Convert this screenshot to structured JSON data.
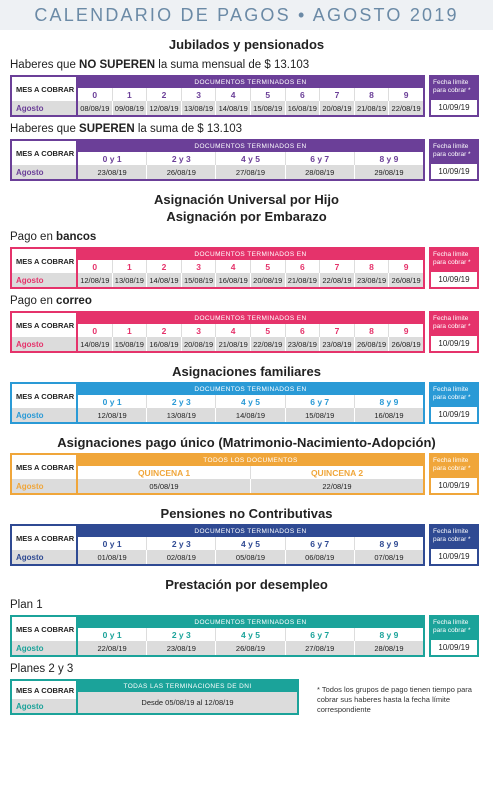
{
  "header": {
    "title": "CALENDARIO DE PAGOS • AGOSTO 2019"
  },
  "sections": [
    {
      "titles": [
        "Jubilados y pensionados"
      ],
      "tables": [
        {
          "color": "#6b3f98",
          "caption": {
            "before": "Haberes que ",
            "bold": "NO SUPEREN",
            "after": " la suma mensual de $ 13.103"
          },
          "row_header": "MES A COBRAR",
          "columns_header": "DOCUMENTOS TERMINADOS EN",
          "columns": [
            "0",
            "1",
            "2",
            "3",
            "4",
            "5",
            "6",
            "7",
            "8",
            "9"
          ],
          "month": "Agosto",
          "dates": [
            "08/08/19",
            "09/08/19",
            "12/08/19",
            "13/08/19",
            "14/08/19",
            "15/08/19",
            "16/08/19",
            "20/08/19",
            "21/08/19",
            "22/08/19"
          ],
          "limit_header": "Fecha límite para cobrar *",
          "limit_date": "10/09/19"
        },
        {
          "color": "#6b3f98",
          "caption": {
            "before": "Haberes que ",
            "bold": "SUPEREN",
            "after": " la suma de $ 13.103"
          },
          "row_header": "MES A COBRAR",
          "columns_header": "DOCUMENTOS TERMINADOS EN",
          "columns": [
            "0 y 1",
            "2 y 3",
            "4 y 5",
            "6 y 7",
            "8 y 9"
          ],
          "month": "Agosto",
          "dates": [
            "23/08/19",
            "26/08/19",
            "27/08/19",
            "28/08/19",
            "29/08/19"
          ],
          "limit_header": "Fecha límite para cobrar *",
          "limit_date": "10/09/19"
        }
      ]
    },
    {
      "titles": [
        "Asignación Universal por Hijo",
        "Asignación por Embarazo"
      ],
      "tables": [
        {
          "color": "#e5336b",
          "caption": {
            "before": "Pago en ",
            "bold": "bancos"
          },
          "row_header": "MES A COBRAR",
          "columns_header": "DOCUMENTOS TERMINADOS EN",
          "columns": [
            "0",
            "1",
            "2",
            "3",
            "4",
            "5",
            "6",
            "7",
            "8",
            "9"
          ],
          "month": "Agosto",
          "dates": [
            "12/08/19",
            "13/08/19",
            "14/08/19",
            "15/08/19",
            "16/08/19",
            "20/08/19",
            "21/08/19",
            "22/08/19",
            "23/08/19",
            "26/08/19"
          ],
          "limit_header": "Fecha límite para cobrar *",
          "limit_date": "10/09/19"
        },
        {
          "color": "#e5336b",
          "caption": {
            "before": "Pago en ",
            "bold": "correo"
          },
          "row_header": "MES A COBRAR",
          "columns_header": "DOCUMENTOS TERMINADOS EN",
          "columns": [
            "0",
            "1",
            "2",
            "3",
            "4",
            "5",
            "6",
            "7",
            "8",
            "9"
          ],
          "month": "Agosto",
          "dates": [
            "14/08/19",
            "15/08/19",
            "16/08/19",
            "20/08/19",
            "21/08/19",
            "22/08/19",
            "23/08/19",
            "23/08/19",
            "26/08/19",
            "26/08/19"
          ],
          "limit_header": "Fecha límite para cobrar *",
          "limit_date": "10/09/19"
        }
      ]
    },
    {
      "titles": [
        "Asignaciones familiares"
      ],
      "tables": [
        {
          "color": "#2a9ad6",
          "row_header": "MES A COBRAR",
          "columns_header": "DOCUMENTOS TERMINADOS EN",
          "columns": [
            "0 y 1",
            "2 y 3",
            "4 y 5",
            "6 y 7",
            "8 y 9"
          ],
          "month": "Agosto",
          "dates": [
            "12/08/19",
            "13/08/19",
            "14/08/19",
            "15/08/19",
            "16/08/19"
          ],
          "limit_header": "Fecha límite para cobrar *",
          "limit_date": "10/09/19"
        }
      ]
    },
    {
      "titles": [
        "Asignaciones pago único (Matrimonio-Nacimiento-Adopción)"
      ],
      "tables": [
        {
          "color": "#f0a63a",
          "row_header": "MES A COBRAR",
          "columns_header": "TODOS LOS DOCUMENTOS",
          "columns": [
            "QUINCENA 1",
            "QUINCENA 2"
          ],
          "month": "Agosto",
          "dates": [
            "05/08/19",
            "22/08/19"
          ],
          "limit_header": "Fecha límite para cobrar *",
          "limit_date": "10/09/19"
        }
      ]
    },
    {
      "titles": [
        "Pensiones no Contributivas"
      ],
      "tables": [
        {
          "color": "#2f4a93",
          "row_header": "MES A COBRAR",
          "columns_header": "DOCUMENTOS TERMINADOS EN",
          "columns": [
            "0 y 1",
            "2 y 3",
            "4 y 5",
            "6 y 7",
            "8 y 9"
          ],
          "month": "Agosto",
          "dates": [
            "01/08/19",
            "02/08/19",
            "05/08/19",
            "06/08/19",
            "07/08/19"
          ],
          "limit_header": "Fecha límite para cobrar *",
          "limit_date": "10/09/19"
        }
      ]
    },
    {
      "titles": [
        "Prestación por desempleo"
      ],
      "tables": [
        {
          "color": "#1ba39a",
          "caption": {
            "before": "Plan 1"
          },
          "row_header": "MES A COBRAR",
          "columns_header": "DOCUMENTOS TERMINADOS EN",
          "columns": [
            "0 y 1",
            "2 y 3",
            "4 y 5",
            "6 y 7",
            "8 y 9"
          ],
          "month": "Agosto",
          "dates": [
            "22/08/19",
            "23/08/19",
            "26/08/19",
            "27/08/19",
            "28/08/19"
          ],
          "limit_header": "Fecha límite para cobrar *",
          "limit_date": "10/09/19"
        },
        {
          "color": "#1ba39a",
          "caption": {
            "before": "Planes 2 y 3"
          },
          "row_header": "MES A COBRAR",
          "columns_header": "TODAS LAS TERMINACIONES DE DNI",
          "month": "Agosto",
          "dates": [
            "Desde 05/08/19 al 12/08/19"
          ],
          "note": "* Todos los grupos de pago tienen tiempo para cobrar sus haberes hasta la fecha límite correspondiente"
        }
      ]
    }
  ]
}
